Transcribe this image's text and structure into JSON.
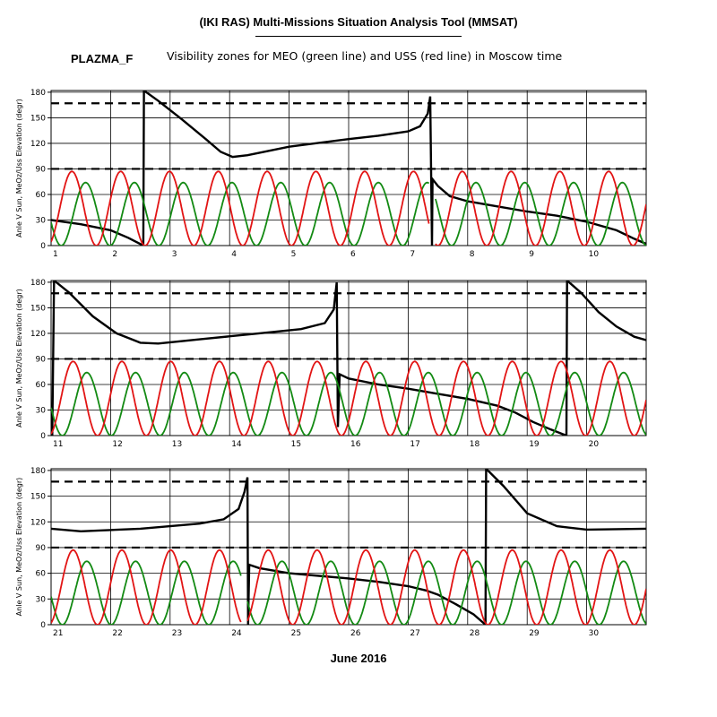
{
  "header": {
    "title": "(IKI RAS) Multi-Missions Situation Analysis Tool (MMSAT)",
    "object_name": "PLAZMA_F",
    "subtitle": "Visibility zones for MEO (green line) and USS (red line) in Moscow time"
  },
  "footer": {
    "month_label": "June 2016"
  },
  "colors": {
    "sun_angle": "#000000",
    "meo": "#138a13",
    "uss": "#e21414",
    "grid": "#000000",
    "threshold": "#000000"
  },
  "chart_data": [
    {
      "type": "line",
      "ylabel": "Anle V Sun, MeOz/Uss Elevation (degr)",
      "xlim": [
        1,
        11
      ],
      "ylim": [
        0,
        182
      ],
      "xticks": [
        1,
        2,
        3,
        4,
        5,
        6,
        7,
        8,
        9,
        10
      ],
      "yticks": [
        0,
        30,
        60,
        90,
        120,
        150,
        180
      ],
      "threshold_lines": [
        90,
        167
      ],
      "series": [
        {
          "key": "sun",
          "points": [
            [
              1,
              30
            ],
            [
              1.5,
              25
            ],
            [
              2,
              18
            ],
            [
              2.3,
              9
            ],
            [
              2.55,
              0
            ],
            [
              2.56,
              182
            ],
            [
              2.8,
              170
            ],
            [
              3.2,
              148
            ],
            [
              3.6,
              125
            ],
            [
              3.85,
              110
            ],
            [
              4.05,
              104
            ],
            [
              4.3,
              106
            ],
            [
              5,
              116
            ],
            [
              6,
              125
            ],
            [
              6.5,
              129
            ],
            [
              7,
              134
            ],
            [
              7.2,
              140
            ],
            [
              7.33,
              155
            ],
            [
              7.37,
              175
            ],
            [
              7.4,
              0
            ],
            [
              7.41,
              78
            ],
            [
              7.5,
              70
            ],
            [
              7.7,
              58
            ],
            [
              8,
              52
            ],
            [
              8.5,
              46
            ],
            [
              9,
              40
            ],
            [
              9.5,
              35
            ],
            [
              10,
              28
            ],
            [
              10.5,
              18
            ],
            [
              10.8,
              8
            ],
            [
              11,
              2
            ]
          ]
        },
        {
          "key": "meo",
          "period": 0.82,
          "phase": 1.58,
          "amplitude": 74,
          "gaps": [
            [
              7.35,
              7.45
            ]
          ]
        },
        {
          "key": "uss",
          "period": 0.82,
          "phase": 1.35,
          "amplitude": 87,
          "gaps": [
            [
              7.35,
              7.45
            ]
          ]
        }
      ]
    },
    {
      "type": "line",
      "ylabel": "Anle V Sun, MeOz/Uss Elevation (degr)",
      "xlim": [
        11,
        21
      ],
      "ylim": [
        0,
        182
      ],
      "xticks": [
        11,
        12,
        13,
        14,
        15,
        16,
        17,
        18,
        19,
        20
      ],
      "yticks": [
        0,
        30,
        60,
        90,
        120,
        150,
        180
      ],
      "threshold_lines": [
        90,
        167
      ],
      "series": [
        {
          "key": "sun",
          "points": [
            [
              11.02,
              0
            ],
            [
              11.05,
              182
            ],
            [
              11.3,
              168
            ],
            [
              11.7,
              140
            ],
            [
              12.1,
              120
            ],
            [
              12.5,
              109
            ],
            [
              12.8,
              108
            ],
            [
              13.5,
              113
            ],
            [
              14.5,
              120
            ],
            [
              15.2,
              125
            ],
            [
              15.6,
              132
            ],
            [
              15.75,
              148
            ],
            [
              15.8,
              180
            ],
            [
              15.82,
              10
            ],
            [
              15.85,
              72
            ],
            [
              16,
              67
            ],
            [
              16.5,
              60
            ],
            [
              17,
              55
            ],
            [
              17.5,
              49
            ],
            [
              18,
              43
            ],
            [
              18.5,
              35
            ],
            [
              18.8,
              27
            ],
            [
              19.1,
              16
            ],
            [
              19.4,
              7
            ],
            [
              19.66,
              0
            ],
            [
              19.67,
              182
            ],
            [
              19.9,
              168
            ],
            [
              20.2,
              145
            ],
            [
              20.5,
              128
            ],
            [
              20.8,
              116
            ],
            [
              21,
              112
            ]
          ]
        },
        {
          "key": "meo",
          "period": 0.82,
          "phase": 11.6,
          "amplitude": 74,
          "gaps": []
        },
        {
          "key": "uss",
          "period": 0.82,
          "phase": 11.37,
          "amplitude": 87,
          "gaps": []
        }
      ]
    },
    {
      "type": "line",
      "ylabel": "Anle V Sun, MeOz/Uss Elevation (degr)",
      "xlim": [
        21,
        31
      ],
      "ylim": [
        0,
        182
      ],
      "xticks": [
        21,
        22,
        23,
        24,
        25,
        26,
        27,
        28,
        29,
        30
      ],
      "yticks": [
        0,
        30,
        60,
        90,
        120,
        150,
        180
      ],
      "threshold_lines": [
        90,
        167
      ],
      "series": [
        {
          "key": "sun",
          "points": [
            [
              21,
              112
            ],
            [
              21.5,
              109
            ],
            [
              22.5,
              112
            ],
            [
              23.5,
              118
            ],
            [
              23.9,
              123
            ],
            [
              24.15,
              135
            ],
            [
              24.25,
              155
            ],
            [
              24.3,
              172
            ],
            [
              24.31,
              0
            ],
            [
              24.33,
              70
            ],
            [
              24.5,
              66
            ],
            [
              25,
              60
            ],
            [
              25.5,
              57
            ],
            [
              26,
              54
            ],
            [
              26.5,
              50
            ],
            [
              27,
              45
            ],
            [
              27.3,
              40
            ],
            [
              27.5,
              35
            ],
            [
              27.8,
              24
            ],
            [
              28.1,
              12
            ],
            [
              28.3,
              0
            ],
            [
              28.31,
              182
            ],
            [
              28.6,
              162
            ],
            [
              29,
              130
            ],
            [
              29.5,
              115
            ],
            [
              30,
              111
            ],
            [
              31,
              112
            ]
          ]
        },
        {
          "key": "meo",
          "period": 0.82,
          "phase": 21.6,
          "amplitude": 74,
          "gaps": [
            [
              24.2,
              24.3
            ]
          ]
        },
        {
          "key": "uss",
          "period": 0.82,
          "phase": 21.37,
          "amplitude": 87,
          "gaps": [
            [
              24.2,
              24.3
            ]
          ]
        }
      ]
    }
  ]
}
